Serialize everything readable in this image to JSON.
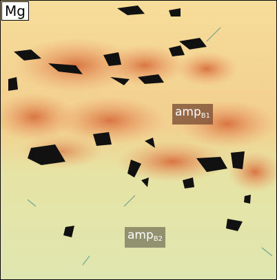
{
  "element_label": "Mg",
  "annotations": [
    {
      "text": "amp",
      "subscript": "B1"
    },
    {
      "text": "amp",
      "subscript": "B2"
    }
  ]
}
